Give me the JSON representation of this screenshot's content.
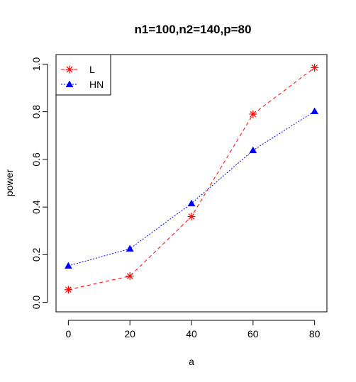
{
  "chart_data": {
    "type": "line",
    "title": "n1=100,n2=140,p=80",
    "xlabel": "a",
    "ylabel": "power",
    "x": [
      0,
      20,
      40,
      60,
      80
    ],
    "xlim": [
      -4,
      84
    ],
    "ylim": [
      -0.04,
      1.04
    ],
    "xticks": [
      "0",
      "20",
      "40",
      "60",
      "80"
    ],
    "yticks": [
      "0.0",
      "0.2",
      "0.4",
      "0.6",
      "0.8",
      "1.0"
    ],
    "legend_position": "top-left",
    "grid": false,
    "series": [
      {
        "name": "L",
        "values": [
          0.053,
          0.11,
          0.36,
          0.79,
          0.985
        ],
        "color": "#ff0000",
        "marker": "asterisk",
        "line": "dashed"
      },
      {
        "name": "HN",
        "values": [
          0.153,
          0.225,
          0.415,
          0.638,
          0.802
        ],
        "color": "#0000ff",
        "marker": "triangle",
        "line": "dotted"
      }
    ]
  }
}
